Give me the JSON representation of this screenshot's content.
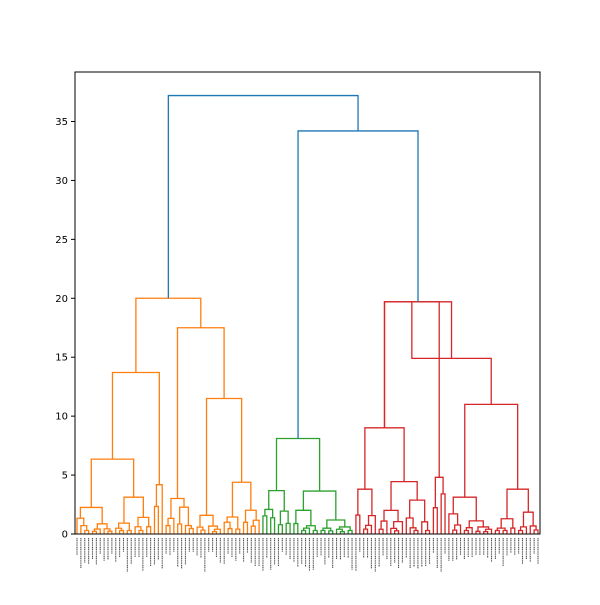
{
  "chart_data": {
    "type": "dendrogram",
    "title": "",
    "xlabel": "",
    "ylabel": "",
    "ylim": [
      0,
      39.2
    ],
    "y_ticks": [
      0,
      5,
      10,
      15,
      20,
      25,
      30,
      35
    ],
    "grid": false,
    "legend": "none",
    "colors": {
      "cluster_orange": "#ff7f0e",
      "cluster_green": "#2ca02c",
      "cluster_red": "#d62728",
      "above_threshold": "#1f77b4"
    },
    "leaf_count": 120,
    "merge_heights": {
      "root": 37.2,
      "green_red_merge": 34.2,
      "orange_cluster_top": 20.0,
      "orange_left_branch": 13.7,
      "orange_right_branch": 17.5,
      "orange_right_sub": 11.5,
      "green_cluster_top": 8.1,
      "red_cluster_top": 19.7,
      "red_right_branch": 14.9,
      "red_right_sub": 11.0,
      "red_left_sub": 9.0
    },
    "leaf_labels_note": "leaf labels are printed but too small to read"
  }
}
